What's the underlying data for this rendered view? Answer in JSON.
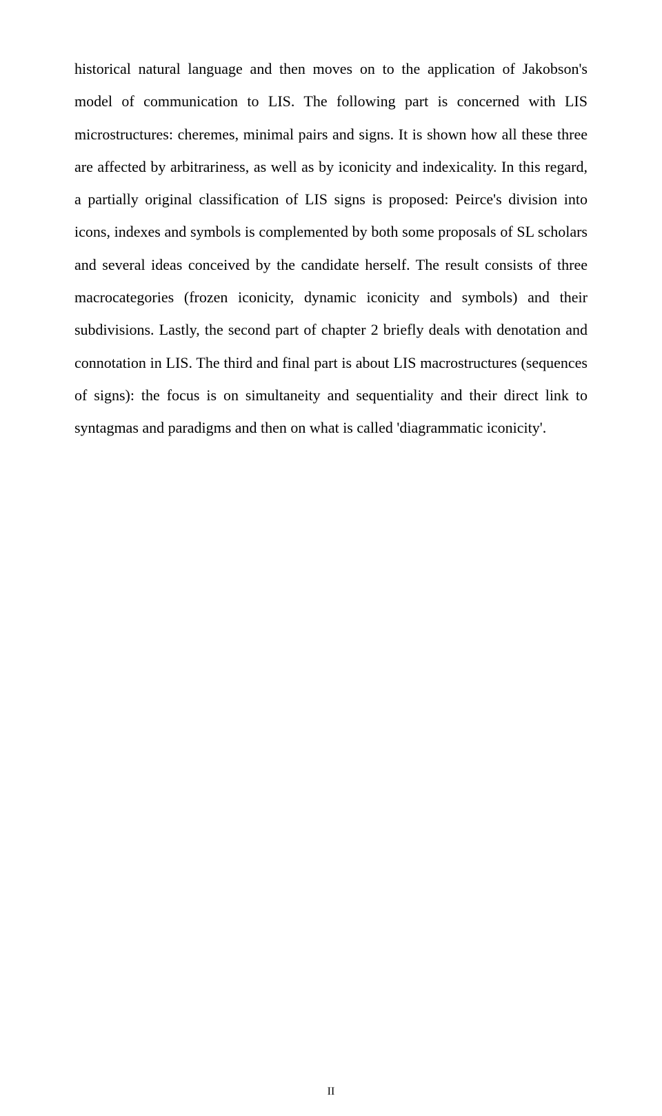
{
  "document": {
    "body_text": "historical natural language and then moves on to the application of Jakobson's model of communication to LIS. The following part is concerned with LIS microstructures: cheremes, minimal pairs and signs. It is shown how all these three are affected by arbitrariness, as well as by iconicity and indexicality. In this regard, a partially original classification of LIS signs is proposed: Peirce's division into icons, indexes and symbols is  complemented by both some proposals of SL scholars and several ideas conceived by the candidate herself. The result consists of three macrocategories (frozen iconicity, dynamic iconicity and symbols) and their subdivisions. Lastly, the second part of chapter 2 briefly deals with denotation and connotation in LIS. The third and final part is about LIS macrostructures (sequences of signs): the focus is on simultaneity and sequentiality and their direct link to syntagmas and paradigms and then on what is called 'diagrammatic iconicity'.",
    "page_number": "II",
    "font_family": "Times New Roman",
    "font_size_pt": 12,
    "line_spacing": 2.15,
    "text_color": "#000000",
    "background_color": "#ffffff"
  }
}
